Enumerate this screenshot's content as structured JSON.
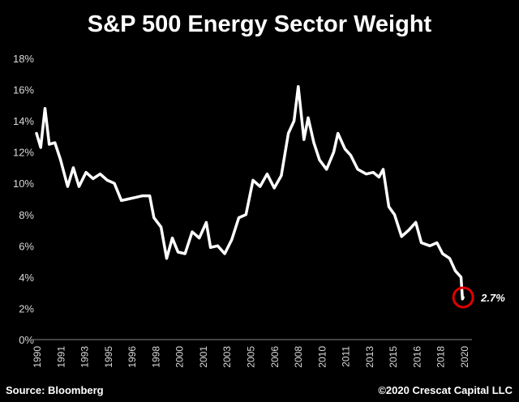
{
  "chart_data": {
    "type": "line",
    "title": "S&P 500 Energy Sector Weight",
    "xlabel": "",
    "ylabel": "",
    "ylim": [
      0,
      18
    ],
    "y_ticks": [
      "0%",
      "2%",
      "4%",
      "6%",
      "8%",
      "10%",
      "12%",
      "14%",
      "16%",
      "18%"
    ],
    "x_ticks": [
      "1990",
      "1991",
      "1993",
      "1995",
      "1996",
      "1998",
      "2000",
      "2001",
      "2003",
      "2005",
      "2006",
      "2008",
      "2010",
      "2011",
      "2013",
      "2015",
      "2016",
      "2018",
      "2020"
    ],
    "grid": false,
    "series": [
      {
        "name": "S&P 500 Energy Sector Weight (%)",
        "color": "#ffffff",
        "x": [
          1990.0,
          1990.3,
          1990.6,
          1990.9,
          1991.3,
          1991.7,
          1992.2,
          1992.6,
          1993.0,
          1993.5,
          1994.0,
          1994.5,
          1995.0,
          1995.5,
          1996.0,
          1996.5,
          1997.0,
          1997.5,
          1998.0,
          1998.3,
          1998.8,
          1999.2,
          1999.6,
          2000.0,
          2000.5,
          2001.0,
          2001.5,
          2002.0,
          2002.3,
          2002.8,
          2003.3,
          2003.8,
          2004.3,
          2004.8,
          2005.3,
          2005.8,
          2006.3,
          2006.8,
          2007.3,
          2007.8,
          2008.2,
          2008.5,
          2008.9,
          2009.2,
          2009.6,
          2010.0,
          2010.5,
          2011.0,
          2011.3,
          2011.8,
          2012.2,
          2012.7,
          2013.3,
          2013.8,
          2014.2,
          2014.5,
          2014.9,
          2015.3,
          2015.8,
          2016.3,
          2016.8,
          2017.2,
          2017.8,
          2018.3,
          2018.7,
          2019.2,
          2019.6,
          2020.0,
          2020.1,
          2020.15
        ],
        "values": [
          13.2,
          12.3,
          14.8,
          12.5,
          12.6,
          11.5,
          9.8,
          11.0,
          9.8,
          10.7,
          10.3,
          10.6,
          10.2,
          10.0,
          8.9,
          9.0,
          9.1,
          9.2,
          9.2,
          7.8,
          7.2,
          5.2,
          6.5,
          5.6,
          5.5,
          6.9,
          6.5,
          7.5,
          5.9,
          6.0,
          5.5,
          6.4,
          7.8,
          8.0,
          10.2,
          9.8,
          10.6,
          9.7,
          10.5,
          13.2,
          14.0,
          16.2,
          12.8,
          14.2,
          12.6,
          11.5,
          10.9,
          12.0,
          13.2,
          12.2,
          11.8,
          10.9,
          10.6,
          10.7,
          10.4,
          10.9,
          8.5,
          8.0,
          6.6,
          7.0,
          7.5,
          6.2,
          6.0,
          6.2,
          5.5,
          5.2,
          4.4,
          4.0,
          2.6,
          2.7
        ]
      }
    ],
    "annotations": [
      {
        "text": "2.7%",
        "x": 2020.15,
        "y": 2.7,
        "marker": "red-circle",
        "color": "#e00000"
      }
    ]
  },
  "footer": {
    "source": "Source: Bloomberg",
    "copyright": "©2020 Crescat Capital LLC"
  }
}
